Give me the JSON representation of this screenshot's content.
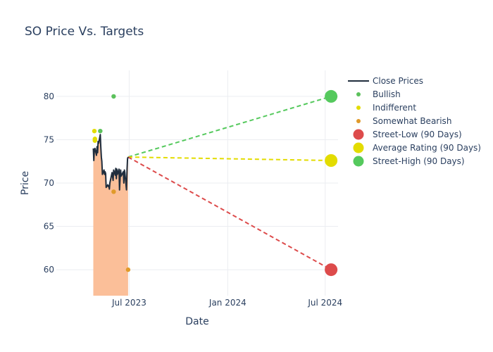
{
  "chart_data": {
    "type": "line",
    "title": "SO Price Vs. Targets",
    "xlabel": "Date",
    "ylabel": "Price",
    "xlim": [
      "2023-02-15",
      "2024-07-25"
    ],
    "ylim": [
      57,
      83
    ],
    "x_ticks": [
      {
        "date": "2023-07-01",
        "label": "Jul 2023"
      },
      {
        "date": "2024-01-01",
        "label": "Jan 2024"
      },
      {
        "date": "2024-07-01",
        "label": "Jul 2024"
      }
    ],
    "y_ticks": [
      60,
      65,
      70,
      75,
      80
    ],
    "grid": true,
    "legend_position": "right",
    "colors": {
      "close": "#1f2d3d",
      "fill": "#fbbf99",
      "bullish": "#5cc15c",
      "indifferent": "#e3dc00",
      "bearish": "#e09a2a",
      "street_low": "#dd4b4b",
      "average": "#e3dc00",
      "street_high": "#55c95d",
      "grid": "#ebedf1",
      "text": "#2a3f5f"
    },
    "series": [
      {
        "name": "Close Prices",
        "type": "line",
        "points": [
          [
            "2023-04-25",
            74.0
          ],
          [
            "2023-04-26",
            72.6
          ],
          [
            "2023-04-27",
            73.8
          ],
          [
            "2023-04-28",
            74.0
          ],
          [
            "2023-05-01",
            73.2
          ],
          [
            "2023-05-02",
            74.2
          ],
          [
            "2023-05-03",
            73.5
          ],
          [
            "2023-05-04",
            74.8
          ],
          [
            "2023-05-05",
            74.6
          ],
          [
            "2023-05-08",
            75.6
          ],
          [
            "2023-05-09",
            74.2
          ],
          [
            "2023-05-10",
            73.0
          ],
          [
            "2023-05-11",
            72.5
          ],
          [
            "2023-05-12",
            71.0
          ],
          [
            "2023-05-15",
            71.5
          ],
          [
            "2023-05-16",
            71.0
          ],
          [
            "2023-05-17",
            71.3
          ],
          [
            "2023-05-18",
            71.1
          ],
          [
            "2023-05-19",
            69.5
          ],
          [
            "2023-05-22",
            69.8
          ],
          [
            "2023-05-23",
            69.6
          ],
          [
            "2023-05-24",
            69.7
          ],
          [
            "2023-05-25",
            69.3
          ],
          [
            "2023-05-26",
            70.0
          ],
          [
            "2023-05-30",
            71.2
          ],
          [
            "2023-05-31",
            70.8
          ],
          [
            "2023-06-01",
            70.3
          ],
          [
            "2023-06-02",
            71.5
          ],
          [
            "2023-06-05",
            70.9
          ],
          [
            "2023-06-06",
            71.7
          ],
          [
            "2023-06-07",
            70.5
          ],
          [
            "2023-06-08",
            71.6
          ],
          [
            "2023-06-09",
            71.0
          ],
          [
            "2023-06-12",
            71.6
          ],
          [
            "2023-06-13",
            69.2
          ],
          [
            "2023-06-14",
            70.5
          ],
          [
            "2023-06-15",
            71.5
          ],
          [
            "2023-06-16",
            70.8
          ],
          [
            "2023-06-20",
            71.3
          ],
          [
            "2023-06-21",
            70.0
          ],
          [
            "2023-06-22",
            71.5
          ],
          [
            "2023-06-23",
            71.2
          ],
          [
            "2023-06-26",
            69.2
          ],
          [
            "2023-06-27",
            71.6
          ],
          [
            "2023-06-28",
            72.8
          ],
          [
            "2023-06-29",
            73.0
          ]
        ]
      },
      {
        "name": "Bullish",
        "type": "scatter",
        "points": [
          [
            "2023-05-08",
            76.0
          ],
          [
            "2023-06-02",
            80.0
          ]
        ]
      },
      {
        "name": "Indifferent",
        "type": "scatter",
        "points": [
          [
            "2023-04-27",
            76.0
          ],
          [
            "2023-04-28",
            75.1
          ],
          [
            "2023-04-28",
            74.9
          ]
        ]
      },
      {
        "name": "Somewhat Bearish",
        "type": "scatter",
        "points": [
          [
            "2023-06-02",
            69.0
          ],
          [
            "2023-06-29",
            60.0
          ]
        ]
      },
      {
        "name": "Street-Low (90 Days)",
        "type": "target",
        "points": [
          [
            "2023-06-29",
            73.0
          ],
          [
            "2024-07-12",
            60.0
          ]
        ]
      },
      {
        "name": "Average Rating (90 Days)",
        "type": "target",
        "points": [
          [
            "2023-06-29",
            73.0
          ],
          [
            "2024-07-12",
            72.6
          ]
        ]
      },
      {
        "name": "Street-High (90 Days)",
        "type": "target",
        "points": [
          [
            "2023-06-29",
            73.0
          ],
          [
            "2024-07-12",
            80.0
          ]
        ]
      }
    ]
  }
}
